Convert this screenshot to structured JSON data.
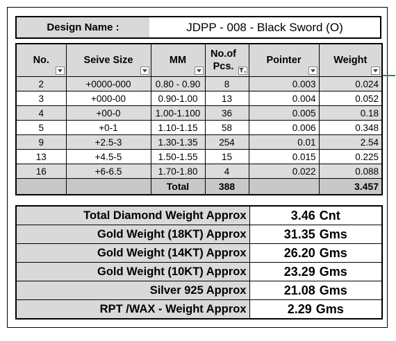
{
  "design": {
    "label": "Design Name :",
    "value": "JDPP - 008 - Black Sword (O)"
  },
  "table": {
    "headers": [
      {
        "label": "No.",
        "filter": false
      },
      {
        "label": "Seive Size",
        "filter": false
      },
      {
        "label": "MM",
        "filter": false
      },
      {
        "label": "No.of Pcs.",
        "filter": true
      },
      {
        "label": "Pointer",
        "filter": false
      },
      {
        "label": "Weight",
        "filter": false
      }
    ],
    "rows": [
      {
        "no": "2",
        "seive": "+0000-000",
        "mm": "0.80 - 0.90",
        "pcs": "8",
        "pointer": "0.003",
        "weight": "0.024"
      },
      {
        "no": "3",
        "seive": "+000-00",
        "mm": "0.90-1.00",
        "pcs": "13",
        "pointer": "0.004",
        "weight": "0.052"
      },
      {
        "no": "4",
        "seive": "+00-0",
        "mm": "1.00-1.100",
        "pcs": "36",
        "pointer": "0.005",
        "weight": "0.18"
      },
      {
        "no": "5",
        "seive": "+0-1",
        "mm": "1.10-1.15",
        "pcs": "58",
        "pointer": "0.006",
        "weight": "0.348"
      },
      {
        "no": "9",
        "seive": "+2.5-3",
        "mm": "1.30-1.35",
        "pcs": "254",
        "pointer": "0.01",
        "weight": "2.54"
      },
      {
        "no": "13",
        "seive": "+4.5-5",
        "mm": "1.50-1.55",
        "pcs": "15",
        "pointer": "0.015",
        "weight": "0.225"
      },
      {
        "no": "16",
        "seive": "+6-6.5",
        "mm": "1.70-1.80",
        "pcs": "4",
        "pointer": "0.022",
        "weight": "0.088"
      }
    ],
    "total": {
      "label": "Total",
      "pcs": "388",
      "weight": "3.457"
    }
  },
  "summary": [
    {
      "label": "Total Diamond Weight Approx",
      "value": "3.46",
      "unit": "Cnt"
    },
    {
      "label": "Gold Weight (18KT) Approx",
      "value": "31.35",
      "unit": "Gms"
    },
    {
      "label": "Gold Weight (14KT) Approx",
      "value": "26.20",
      "unit": "Gms"
    },
    {
      "label": "Gold Weight (10KT) Approx",
      "value": "23.29",
      "unit": "Gms"
    },
    {
      "label": "Silver 925 Approx",
      "value": "21.08",
      "unit": "Gms"
    },
    {
      "label": "RPT /WAX - Weight Approx",
      "value": "2.29",
      "unit": "Gms"
    }
  ],
  "colors": {
    "header_fill": "#d9d9d9",
    "band_fill": "#dcdcdc",
    "total_fill": "#c8c8c8",
    "accent_line": "#2e8b57"
  },
  "icons": {
    "dropdown": "chevron-down-icon",
    "filter": "filter-icon"
  }
}
